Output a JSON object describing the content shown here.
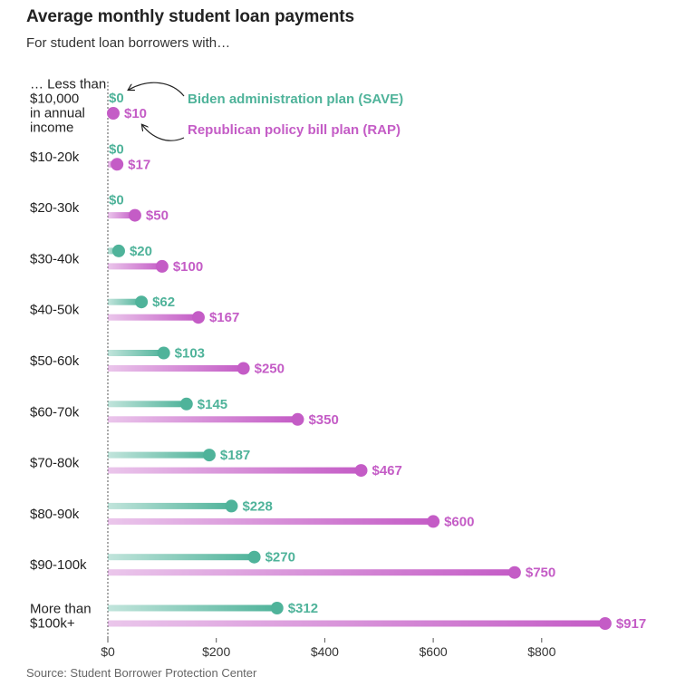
{
  "title": "Average monthly student loan payments",
  "subtitle": "For student loan borrowers with…",
  "source": "Source: Student Borrower Protection Center",
  "colors": {
    "save": "#4fb39a",
    "rap": "#c45cc6",
    "axis": "#555555"
  },
  "chart_data": {
    "type": "dumbbell",
    "categories": [
      "… Less than $10,000 in annual income",
      "$10-20k",
      "$20-30k",
      "$30-40k",
      "$40-50k",
      "$50-60k",
      "$60-70k",
      "$70-80k",
      "$80-90k",
      "$90-100k",
      "More than $100k+"
    ],
    "category_lines": [
      [
        "… Less than",
        "$10,000",
        "in annual",
        "income"
      ],
      [
        "$10-20k"
      ],
      [
        "$20-30k"
      ],
      [
        "$30-40k"
      ],
      [
        "$40-50k"
      ],
      [
        "$50-60k"
      ],
      [
        "$60-70k"
      ],
      [
        "$70-80k"
      ],
      [
        "$80-90k"
      ],
      [
        "$90-100k"
      ],
      [
        "More than",
        "$100k+"
      ]
    ],
    "series": [
      {
        "name": "Biden administration plan (SAVE)",
        "values": [
          0,
          0,
          0,
          20,
          62,
          103,
          145,
          187,
          228,
          270,
          312
        ]
      },
      {
        "name": "Republican policy bill plan (RAP)",
        "values": [
          10,
          17,
          50,
          100,
          167,
          250,
          350,
          467,
          600,
          750,
          917
        ]
      }
    ],
    "value_labels": {
      "save": [
        "$0",
        "$0",
        "$0",
        "$20",
        "$62",
        "$103",
        "$145",
        "$187",
        "$228",
        "$270",
        "$312"
      ],
      "rap": [
        "$10",
        "$17",
        "$50",
        "$100",
        "$167",
        "$250",
        "$350",
        "$467",
        "$600",
        "$750",
        "$917"
      ]
    },
    "xticks": [
      0,
      200,
      400,
      600,
      800
    ],
    "xtick_labels": [
      "$0",
      "$200",
      "$400",
      "$600",
      "$800"
    ],
    "xlim": [
      0,
      917
    ],
    "grid": false
  }
}
